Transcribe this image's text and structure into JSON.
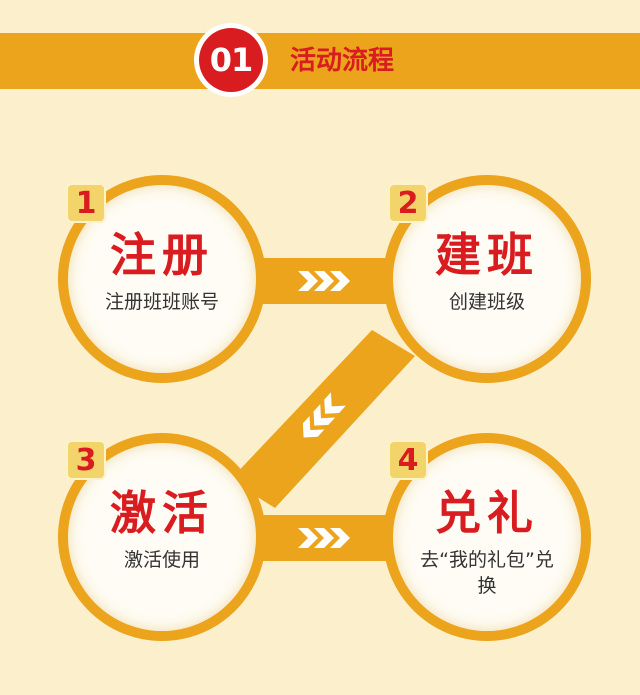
{
  "header": {
    "number": "01",
    "title": "活动流程"
  },
  "steps": [
    {
      "num": "1",
      "title": "注册",
      "desc": "注册班班账号"
    },
    {
      "num": "2",
      "title": "建班",
      "desc": "创建班级"
    },
    {
      "num": "3",
      "title": "激活",
      "desc": "激活使用"
    },
    {
      "num": "4",
      "title": "兑礼",
      "desc": "去“我的礼包”兑换"
    }
  ],
  "colors": {
    "accent": "#eba41c",
    "red": "#d81c1f",
    "background": "#fbefcc"
  },
  "icons": {
    "arrow_right": "chevrons-right-icon",
    "arrow_down_left": "chevrons-down-left-icon"
  }
}
